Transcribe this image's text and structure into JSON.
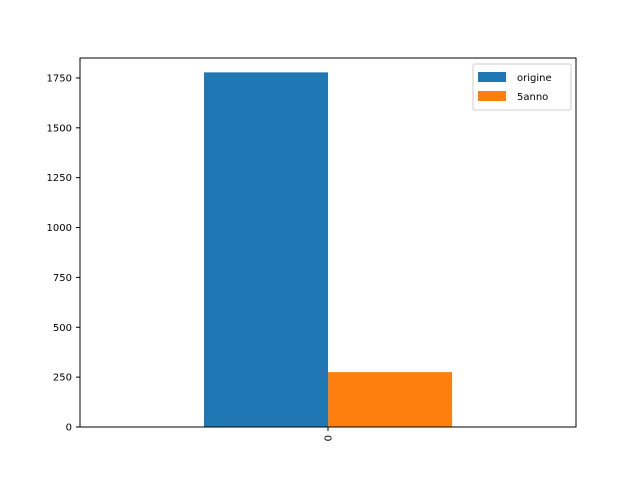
{
  "chart_data": {
    "type": "bar",
    "categories": [
      "0"
    ],
    "series": [
      {
        "name": "origine",
        "values": [
          1778
        ],
        "color": "#1f77b4"
      },
      {
        "name": "5anno",
        "values": [
          275
        ],
        "color": "#ff7f0e"
      }
    ],
    "ylim": [
      0,
      1850
    ],
    "yticks": [
      0,
      250,
      500,
      750,
      1000,
      1250,
      1500,
      1750
    ],
    "title": "",
    "xlabel": "",
    "ylabel": "",
    "grid": false,
    "legend_position": "top-right",
    "xtick_rotation": "vertical"
  }
}
